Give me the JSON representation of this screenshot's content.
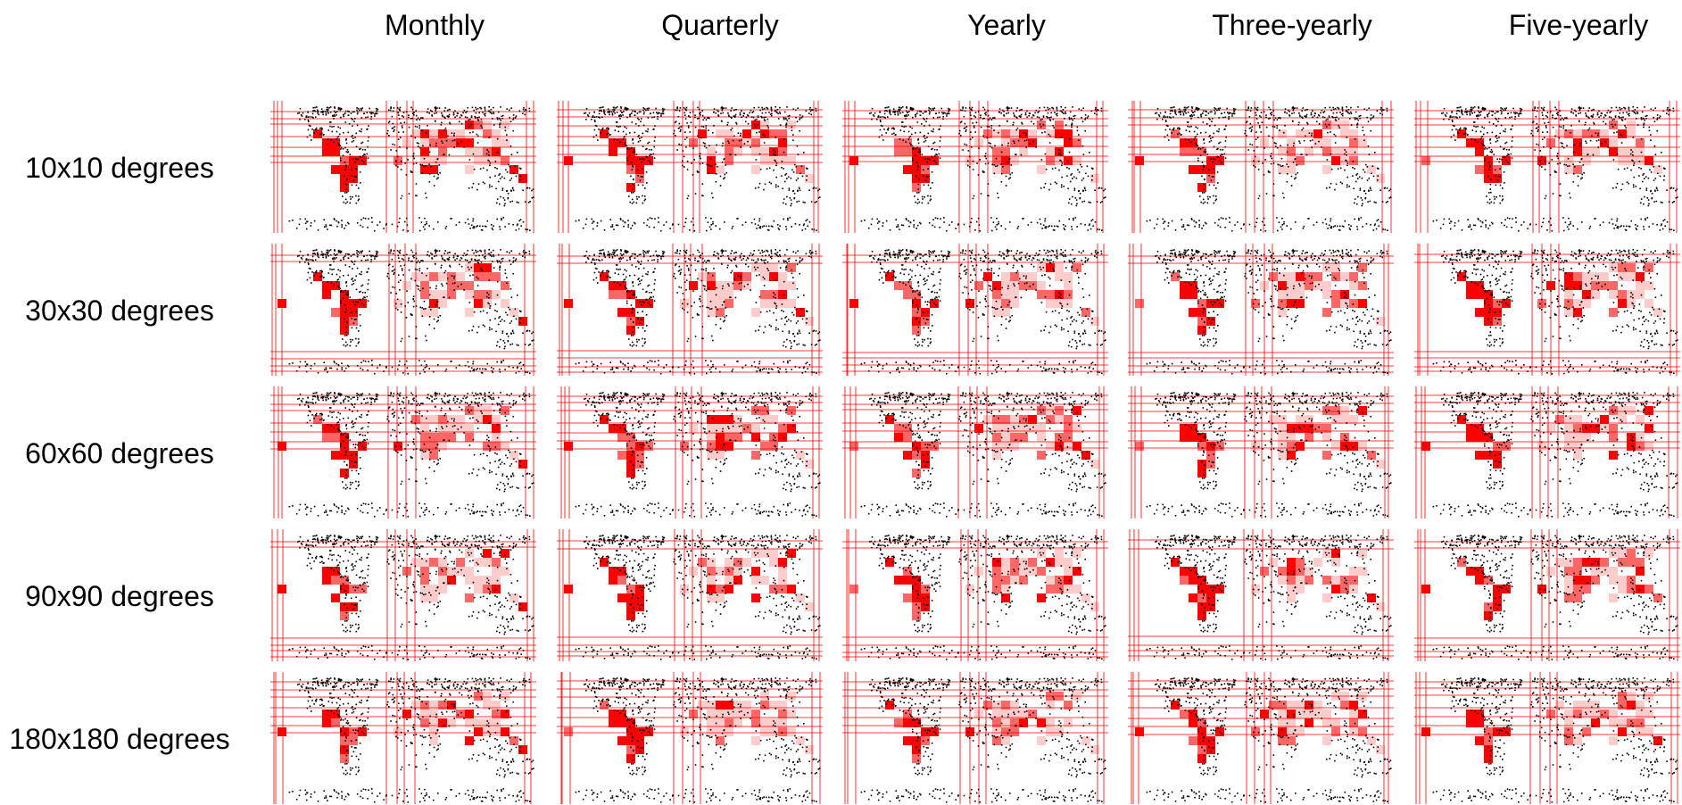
{
  "columns": [
    "Monthly",
    "Quarterly",
    "Yearly",
    "Three-yearly",
    "Five-yearly"
  ],
  "rows": [
    "10x10 degrees",
    "30x30 degrees",
    "60x60 degrees",
    "90x90 degrees",
    "180x180 degrees"
  ],
  "colors": {
    "strong": "#ff0000",
    "medium": "#ff6666",
    "light": "#ffcccc",
    "coast": "#000000",
    "grid": "#ff0000"
  }
}
